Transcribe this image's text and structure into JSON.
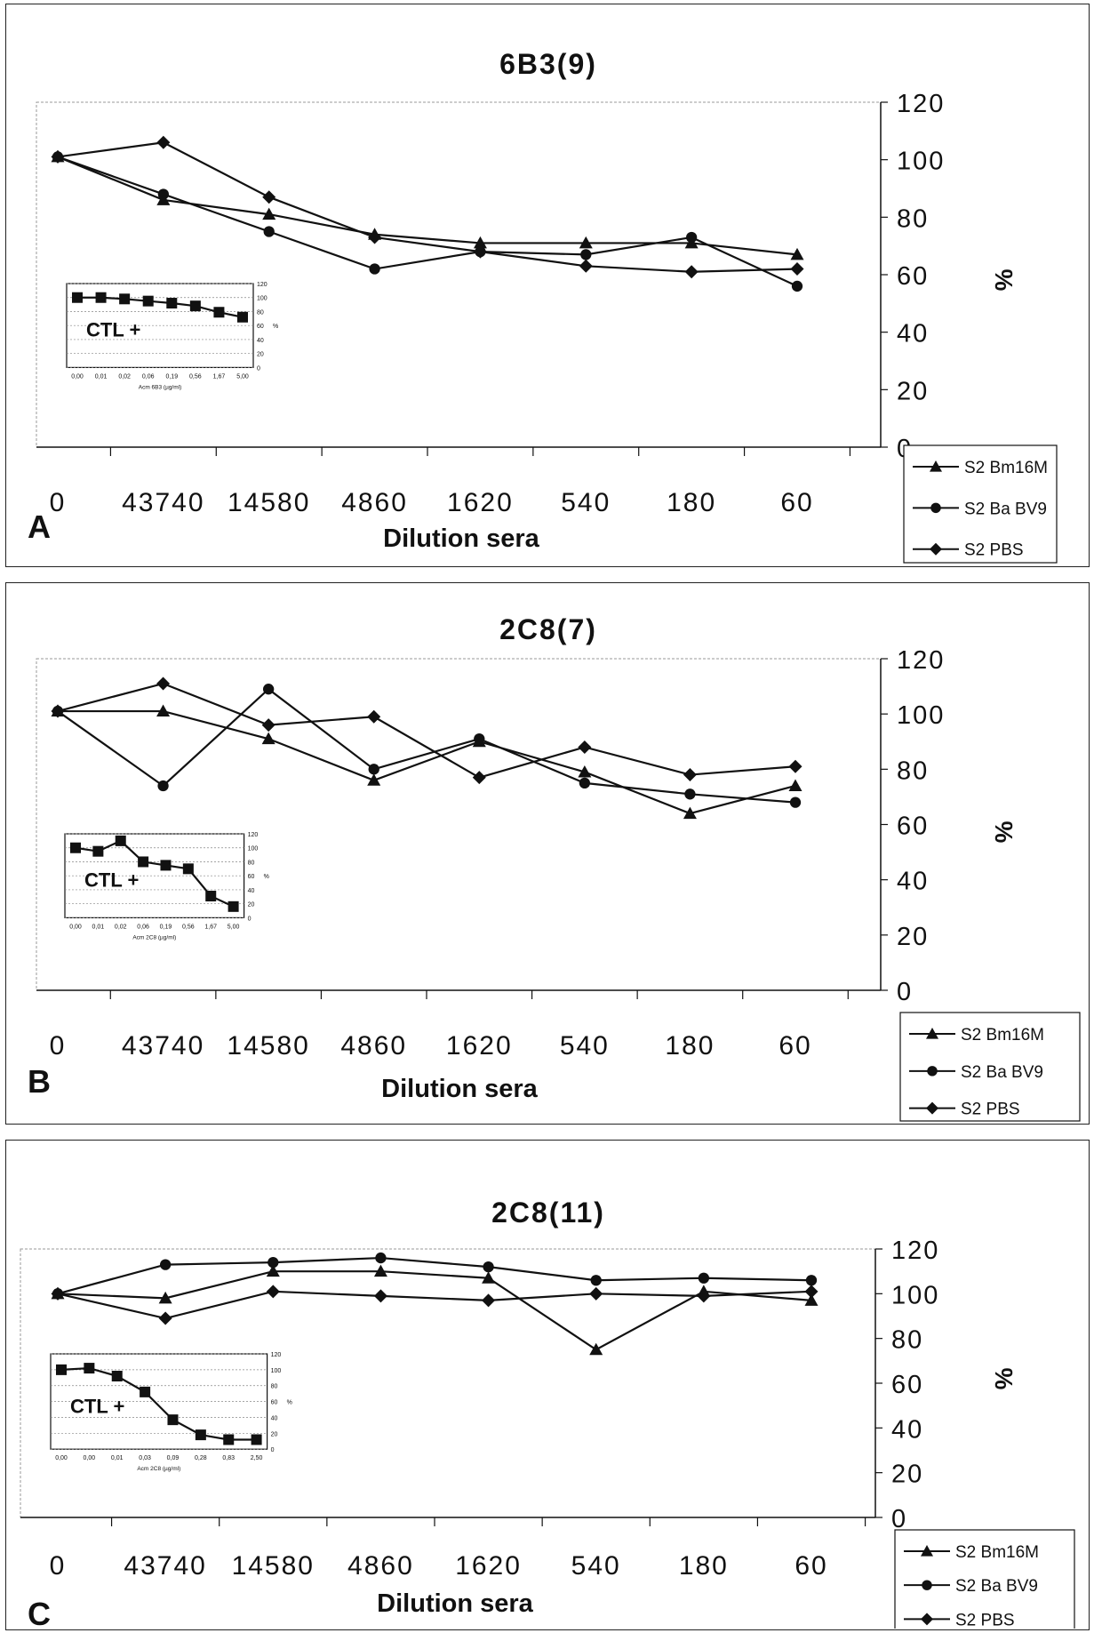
{
  "chart_data": [
    {
      "type": "line",
      "panel_label": "A",
      "title": "6B3(9)",
      "xlabel": "Dilution sera",
      "ylabel": "%",
      "categories": [
        "0",
        "43740",
        "14580",
        "4860",
        "1620",
        "540",
        "180",
        "60"
      ],
      "ylim": [
        0,
        120
      ],
      "yticks": [
        "0",
        "20",
        "40",
        "60",
        "80",
        "100",
        "120"
      ],
      "grid": false,
      "legend_position": "bottom-right",
      "series": [
        {
          "name": "S2 Bm16M",
          "marker": "triangle",
          "values": [
            101,
            86,
            81,
            74,
            71,
            71,
            71,
            67
          ]
        },
        {
          "name": "S2 Ba BV9",
          "marker": "circle",
          "values": [
            101,
            88,
            75,
            62,
            68,
            67,
            73,
            56
          ]
        },
        {
          "name": "S2 PBS",
          "marker": "diamond",
          "values": [
            101,
            106,
            87,
            73,
            68,
            63,
            61,
            62
          ]
        }
      ],
      "inset": {
        "annotation": "CTL +",
        "xlabel": "Acm 6B3 (µg/ml)",
        "categories": [
          "0,00",
          "0,01",
          "0,02",
          "0,06",
          "0,19",
          "0,56",
          "1,67",
          "5,00"
        ],
        "yticks": [
          "0",
          "20",
          "40",
          "60",
          "80",
          "100",
          "120"
        ],
        "ylabel": "%",
        "values": [
          100,
          100,
          98,
          95,
          92,
          88,
          79,
          72
        ]
      }
    },
    {
      "type": "line",
      "panel_label": "B",
      "title": "2C8(7)",
      "xlabel": "Dilution sera",
      "ylabel": "%",
      "categories": [
        "0",
        "43740",
        "14580",
        "4860",
        "1620",
        "540",
        "180",
        "60"
      ],
      "ylim": [
        0,
        120
      ],
      "yticks": [
        "0",
        "20",
        "40",
        "60",
        "80",
        "100",
        "120"
      ],
      "grid": false,
      "legend_position": "bottom-right",
      "series": [
        {
          "name": "S2 Bm16M",
          "marker": "triangle",
          "values": [
            101,
            101,
            91,
            76,
            90,
            79,
            64,
            74
          ]
        },
        {
          "name": "S2 Ba BV9",
          "marker": "circle",
          "values": [
            101,
            74,
            109,
            80,
            91,
            75,
            71,
            68
          ]
        },
        {
          "name": "S2 PBS",
          "marker": "diamond",
          "values": [
            101,
            111,
            96,
            99,
            77,
            88,
            78,
            81
          ]
        }
      ],
      "inset": {
        "annotation": "CTL +",
        "xlabel": "Acm 2C8 (µg/ml)",
        "categories": [
          "0,00",
          "0,01",
          "0,02",
          "0,06",
          "0,19",
          "0,56",
          "1,67",
          "5,00"
        ],
        "yticks": [
          "0",
          "20",
          "40",
          "60",
          "80",
          "100",
          "120"
        ],
        "ylabel": "%",
        "values": [
          100,
          95,
          110,
          80,
          75,
          70,
          31,
          16
        ]
      }
    },
    {
      "type": "line",
      "panel_label": "C",
      "title": "2C8(11)",
      "xlabel": "Dilution sera",
      "ylabel": "%",
      "categories": [
        "0",
        "43740",
        "14580",
        "4860",
        "1620",
        "540",
        "180",
        "60"
      ],
      "ylim": [
        0,
        120
      ],
      "yticks": [
        "0",
        "20",
        "40",
        "60",
        "80",
        "100",
        "120"
      ],
      "grid": false,
      "legend_position": "bottom-right",
      "series": [
        {
          "name": "S2 Bm16M",
          "marker": "triangle",
          "values": [
            100,
            98,
            110,
            110,
            107,
            75,
            101,
            97
          ]
        },
        {
          "name": "S2 Ba BV9",
          "marker": "circle",
          "values": [
            100,
            113,
            114,
            116,
            112,
            106,
            107,
            106
          ]
        },
        {
          "name": "S2 PBS",
          "marker": "diamond",
          "values": [
            100,
            89,
            101,
            99,
            97,
            100,
            99,
            101
          ]
        }
      ],
      "inset": {
        "annotation": "CTL +",
        "xlabel": "Acm 2C8 (µg/ml)",
        "categories": [
          "0,00",
          "0,00",
          "0,01",
          "0,03",
          "0,09",
          "0,28",
          "0,83",
          "2,50"
        ],
        "yticks": [
          "0",
          "20",
          "40",
          "60",
          "80",
          "100",
          "120"
        ],
        "ylabel": "%",
        "values": [
          100,
          102,
          92,
          72,
          37,
          18,
          12,
          12
        ]
      }
    }
  ]
}
